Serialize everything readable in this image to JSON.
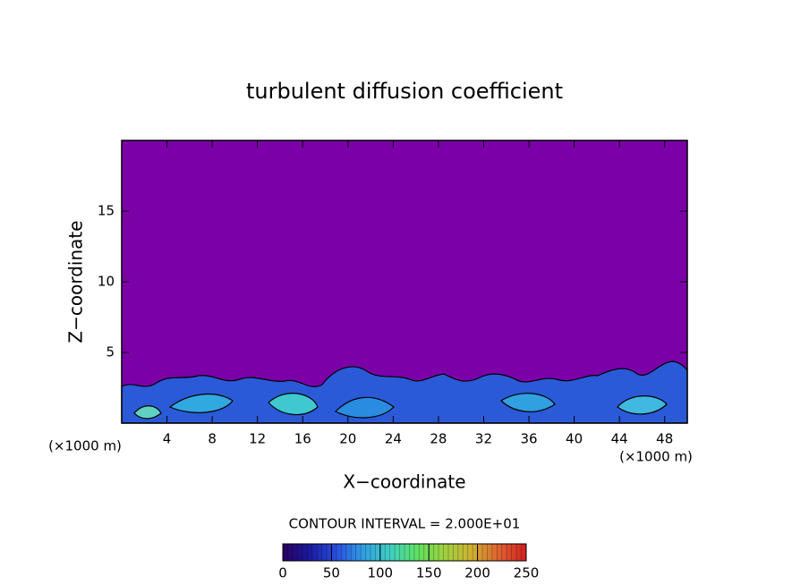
{
  "chart_data": {
    "type": "contour",
    "title": "turbulent diffusion coefficient",
    "x_label": "X−coordinate",
    "y_label": "Z−coordinate",
    "x_unit_left": "(×1000 m)",
    "x_unit_right": "(×1000 m)",
    "xlim": [
      0,
      50
    ],
    "xticks": [
      4,
      8,
      12,
      16,
      20,
      24,
      28,
      32,
      36,
      40,
      44,
      48
    ],
    "ylim": [
      0,
      20
    ],
    "yticks": [
      5,
      10,
      15
    ],
    "contour_interval_text": "CONTOUR INTERVAL = 2.000E+01",
    "colorbar": {
      "lim": [
        0,
        250
      ],
      "ticks": [
        0,
        50,
        100,
        150,
        200,
        250
      ],
      "colors": [
        "#2a0060",
        "#1a1aa0",
        "#2a50e0",
        "#30a0e0",
        "#40d0c0",
        "#60e060",
        "#a0d040",
        "#d0b030",
        "#e06030",
        "#d02020"
      ]
    },
    "background_color": "#7c00a8"
  }
}
